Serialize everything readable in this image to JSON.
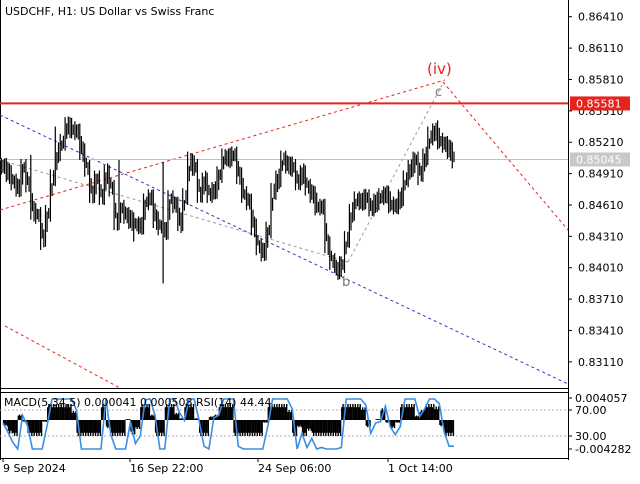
{
  "header": {
    "symbol_label": "USDCHF, H1:  US Dollar vs Swiss Franc"
  },
  "indicator": {
    "label": "MACD(5,34,5) 0.000041 0.000508 RSI(14) 44.44",
    "right_labels": [
      "0.004057",
      "70.00",
      "30.00",
      "-0.004282"
    ]
  },
  "colors": {
    "candles": "#000000",
    "resistance": "#e8231b",
    "resistance_tag_bg": "#e8231b",
    "price_tag_bg": "#c8c8c8",
    "wave_label_iv": "#e8231b",
    "wave_label_grey": "#7a7a7a",
    "channel_red_dotted": "#e8231b",
    "channel_blue_dotted": "#2a39c8",
    "grey_dotted": "#9a9a9a",
    "rsi_line": "#3a8ee6",
    "macd_hist": "#000000"
  },
  "chart_data": {
    "type": "line",
    "symbol": "USDCHF",
    "timeframe": "H1",
    "y_ticks": [
      0.8641,
      0.8611,
      0.8581,
      0.8551,
      0.8521,
      0.8491,
      0.8461,
      0.8431,
      0.8401,
      0.8371,
      0.8341,
      0.8311
    ],
    "y_tick_labels": [
      "0.86410",
      "0.86110",
      "0.85810",
      "0.85510",
      "0.85210",
      "0.84910",
      "0.84610",
      "0.84310",
      "0.84010",
      "0.83710",
      "0.83410",
      "0.83110"
    ],
    "ylim": [
      0.8286,
      0.8657
    ],
    "x_tick_labels": [
      "9 Sep 2024",
      "16 Sep 22:00",
      "24 Sep 06:00",
      "1 Oct 14:00"
    ],
    "resistance_level": 0.85581,
    "resistance_label": "0.85581",
    "current_price": 0.85045,
    "current_price_label": "0.85045",
    "wave_labels": [
      "(iv)",
      "c",
      "b"
    ],
    "series": [
      {
        "values": [
          0.8498,
          0.8491,
          0.8483,
          0.8477,
          0.8497,
          0.8481,
          0.8455,
          0.8451,
          0.8429,
          0.8453,
          0.8487,
          0.8511,
          0.8521,
          0.8537,
          0.8533,
          0.8531,
          0.8512,
          0.8496,
          0.8471,
          0.8486,
          0.8469,
          0.8491,
          0.8477,
          0.8445,
          0.8458,
          0.8451,
          0.8446,
          0.8442,
          0.8441,
          0.8464,
          0.8468,
          0.8447,
          0.844,
          0.8436,
          0.8467,
          0.8461,
          0.8444,
          0.8469,
          0.8502,
          0.8497,
          0.8471,
          0.8484,
          0.8471,
          0.8475,
          0.849,
          0.8507,
          0.8506,
          0.8509,
          0.8489,
          0.8471,
          0.8464,
          0.844,
          0.8421,
          0.8416,
          0.8437,
          0.8474,
          0.8486,
          0.8505,
          0.8499,
          0.8497,
          0.8483,
          0.8491,
          0.8478,
          0.8471,
          0.8459,
          0.8459,
          0.8423,
          0.8407,
          0.8398,
          0.8404,
          0.8428,
          0.8454,
          0.8466,
          0.8464,
          0.8468,
          0.8458,
          0.8464,
          0.8469,
          0.8471,
          0.8461,
          0.846,
          0.8468,
          0.8486,
          0.8496,
          0.8504,
          0.8491,
          0.8507,
          0.8526,
          0.8531,
          0.8522,
          0.8519,
          0.8513,
          0.8504
        ],
        "high_spikes": [
          [
            6,
            0.8509
          ],
          [
            11,
            0.8536
          ],
          [
            13,
            0.8545
          ],
          [
            24,
            0.8504
          ],
          [
            33,
            0.8502
          ],
          [
            38,
            0.8512
          ],
          [
            46,
            0.8513
          ],
          [
            87,
            0.8536
          ],
          [
            89,
            0.8542
          ]
        ],
        "low_spikes": [
          [
            8,
            0.8418
          ],
          [
            27,
            0.8426
          ],
          [
            33,
            0.8386
          ],
          [
            53,
            0.8407
          ],
          [
            68,
            0.8396
          ],
          [
            85,
            0.848
          ]
        ]
      }
    ],
    "rsi_levels": [
      70.0,
      30.0
    ]
  }
}
